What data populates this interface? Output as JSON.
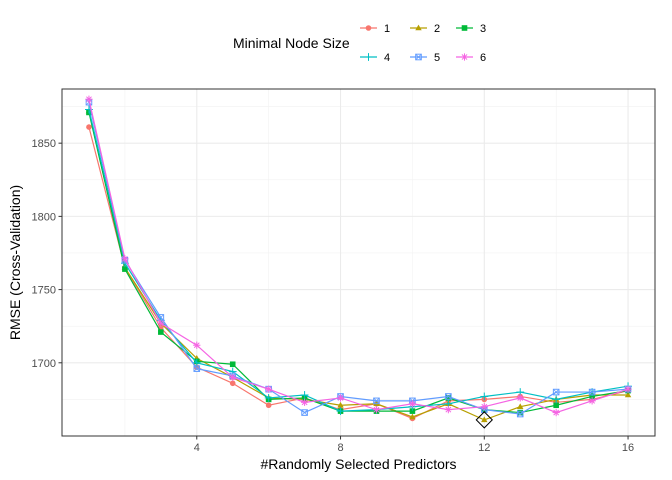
{
  "chart_data": {
    "type": "line",
    "title": "",
    "xlabel": "#Randomly Selected Predictors",
    "ylabel": "RMSE (Cross-Validation)",
    "xlim": [
      0.25,
      16.75
    ],
    "ylim": [
      1650,
      1887
    ],
    "xticks": [
      4,
      8,
      12,
      16
    ],
    "yticks": [
      1700,
      1750,
      1800,
      1850
    ],
    "grid": true,
    "legend": {
      "title": "Minimal Node Size",
      "position": "top",
      "labels": [
        "1",
        "2",
        "3",
        "4",
        "5",
        "6"
      ]
    },
    "x": [
      1,
      2,
      3,
      4,
      5,
      6,
      7,
      8,
      9,
      10,
      11,
      12,
      13,
      14,
      15,
      16
    ],
    "series": [
      {
        "name": "1",
        "color": "#F8766D",
        "marker": "circle",
        "values": [
          1861,
          1765,
          1724,
          1697,
          1686,
          1671,
          1676,
          1668,
          1672,
          1662,
          1674,
          1675,
          1677,
          1673,
          1675,
          1681
        ]
      },
      {
        "name": "2",
        "color": "#B79F00",
        "marker": "triangle",
        "values": [
          1872,
          1765,
          1727,
          1703,
          1690,
          1676,
          1675,
          1671,
          1672,
          1663,
          1672,
          1661,
          1670,
          1675,
          1678,
          1678
        ]
      },
      {
        "name": "3",
        "color": "#00BA38",
        "marker": "square",
        "values": [
          1871,
          1764,
          1721,
          1701,
          1699,
          1675,
          1676,
          1667,
          1667,
          1667,
          1676,
          1668,
          1666,
          1671,
          1677,
          1681
        ]
      },
      {
        "name": "4",
        "color": "#00BFC4",
        "marker": "plus",
        "values": [
          1873,
          1768,
          1729,
          1700,
          1694,
          1676,
          1678,
          1667,
          1668,
          1670,
          1672,
          1677,
          1680,
          1675,
          1680,
          1684
        ]
      },
      {
        "name": "5",
        "color": "#619CFF",
        "marker": "square-x",
        "values": [
          1878,
          1770,
          1731,
          1696,
          1691,
          1682,
          1666,
          1677,
          1674,
          1674,
          1677,
          1668,
          1665,
          1680,
          1680,
          1682
        ]
      },
      {
        "name": "6",
        "color": "#F564E3",
        "marker": "asterisk",
        "values": [
          1880,
          1771,
          1727,
          1712,
          1690,
          1682,
          1673,
          1676,
          1668,
          1672,
          1668,
          1670,
          1676,
          1666,
          1674,
          1682
        ]
      }
    ],
    "annotations": [
      {
        "type": "diamond",
        "x": 12,
        "y": 1661
      }
    ]
  }
}
